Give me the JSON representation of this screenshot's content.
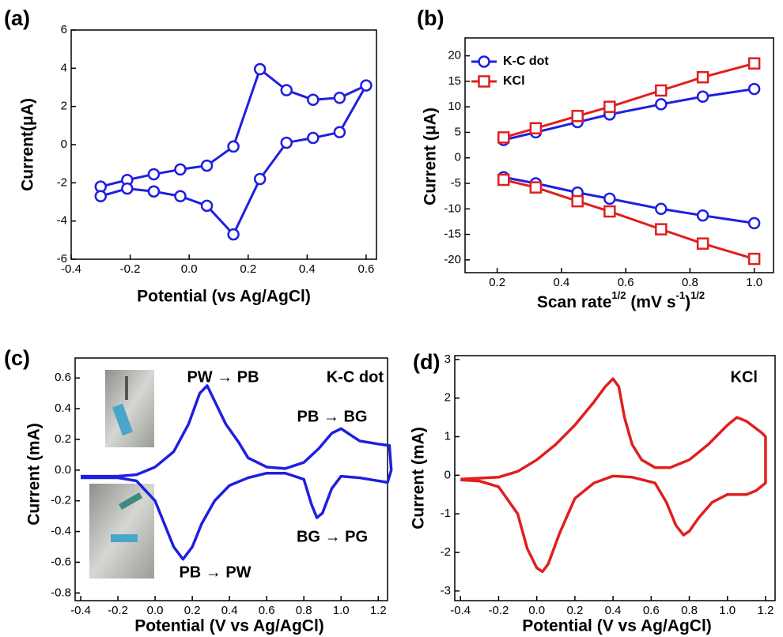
{
  "chart_data": [
    {
      "type": "line",
      "label": "(a)",
      "xlabel": "Potential (vs Ag/AgCl)",
      "ylabel": "Current(μA)",
      "color": "#1f1fe0",
      "marker": "circle",
      "x": [
        -0.3,
        -0.21,
        -0.12,
        -0.03,
        0.06,
        0.15,
        0.24,
        0.33,
        0.42,
        0.51,
        0.6,
        0.51,
        0.42,
        0.33,
        0.24,
        0.15,
        0.06,
        -0.03,
        -0.12,
        -0.21,
        -0.3
      ],
      "values": [
        -2.2,
        -1.85,
        -1.55,
        -1.3,
        -1.1,
        -0.1,
        3.95,
        2.85,
        2.35,
        2.45,
        3.1,
        0.65,
        0.35,
        0.1,
        -1.8,
        -4.7,
        -3.2,
        -2.7,
        -2.45,
        -2.3,
        -2.7
      ],
      "xlim": [
        -0.4,
        0.635
      ],
      "xticks": [
        -0.4,
        -0.2,
        {
          "value": 0,
          "label": "0.0"
        },
        0.2,
        0.4,
        0.6
      ],
      "ylim": [
        -6,
        6
      ],
      "yticks": [
        -6,
        -4,
        -2,
        0,
        2,
        4,
        6
      ]
    },
    {
      "type": "line",
      "label": "(b)",
      "xlabel": [
        "Scan rate",
        "1/2",
        " (mV s",
        "-1",
        ")",
        "1/2"
      ],
      "ylabel": "Current (μA)",
      "legend": "upper left",
      "x": [
        0.22,
        0.32,
        0.45,
        0.55,
        0.71,
        0.84,
        1.0
      ],
      "series": [
        {
          "name": "K-C dot",
          "color": "#1f1fe0",
          "marker": "circle",
          "values": [
            3.5,
            5.0,
            7.0,
            8.5,
            10.5,
            12.0,
            13.5
          ],
          "values_lower": [
            -3.8,
            -5.0,
            -6.8,
            -8.0,
            -10.0,
            -11.3,
            -12.8
          ]
        },
        {
          "name": "KCl",
          "color": "#e01f1f",
          "marker": "square",
          "values": [
            4.0,
            5.8,
            8.2,
            10.0,
            13.2,
            15.8,
            18.5
          ],
          "values_lower": [
            -4.3,
            -5.8,
            -8.5,
            -10.5,
            -14.0,
            -16.8,
            -19.8
          ]
        }
      ],
      "xlim": [
        0.1,
        1.06
      ],
      "xticks": [
        0.2,
        0.4,
        0.6,
        0.8,
        {
          "value": 1,
          "label": "1.0"
        }
      ],
      "ylim": [
        -22.5,
        23.5
      ],
      "yticks": [
        -20,
        -15,
        -10,
        -5,
        0,
        5,
        10,
        15,
        20
      ]
    },
    {
      "type": "line",
      "label": "(c)",
      "xlabel": "Potential (V vs Ag/AgCl)",
      "ylabel": "Current (mA)",
      "color": "#1f1fe0",
      "annotations": [
        "PW → PB",
        "K-C dot",
        "PB → BG",
        "BG → PG",
        "PB → PW"
      ],
      "x": [
        -0.4,
        -0.2,
        -0.1,
        0.0,
        0.1,
        0.18,
        0.24,
        0.28,
        0.32,
        0.38,
        0.45,
        0.5,
        0.6,
        0.7,
        0.8,
        0.88,
        0.95,
        1.0,
        1.05,
        1.1,
        1.2,
        1.26,
        1.27,
        1.25,
        1.2,
        1.1,
        1.0,
        0.95,
        0.9,
        0.87,
        0.84,
        0.8,
        0.7,
        0.6,
        0.5,
        0.4,
        0.32,
        0.25,
        0.2,
        0.15,
        0.1,
        0.05,
        0.0,
        -0.1,
        -0.2,
        -0.4
      ],
      "values": [
        -0.04,
        -0.04,
        -0.03,
        0.02,
        0.12,
        0.3,
        0.5,
        0.55,
        0.45,
        0.3,
        0.18,
        0.08,
        0.02,
        0.01,
        0.05,
        0.14,
        0.24,
        0.27,
        0.23,
        0.19,
        0.17,
        0.16,
        0.0,
        -0.08,
        -0.07,
        -0.05,
        -0.04,
        -0.12,
        -0.28,
        -0.31,
        -0.22,
        -0.06,
        -0.02,
        -0.02,
        -0.05,
        -0.1,
        -0.2,
        -0.35,
        -0.5,
        -0.58,
        -0.5,
        -0.35,
        -0.2,
        -0.07,
        -0.05,
        -0.05
      ],
      "xlim": [
        -0.43,
        1.25
      ],
      "xticks": [
        -0.4,
        -0.2,
        {
          "value": 0,
          "label": "0.0"
        },
        0.2,
        0.4,
        0.6,
        0.8,
        {
          "value": 1,
          "label": "1.0"
        },
        1.2
      ],
      "ylim": [
        -0.85,
        0.73
      ],
      "yticks": [
        -0.8,
        -0.6,
        -0.4,
        -0.2,
        {
          "value": 0,
          "label": "0.0"
        },
        0.2,
        0.4,
        0.6
      ]
    },
    {
      "type": "line",
      "label": "(d)",
      "xlabel": "Potential (V vs Ag/AgCl)",
      "ylabel": "Current (mA)",
      "color": "#e01f1f",
      "annotations": [
        "KCl"
      ],
      "x": [
        -0.4,
        -0.2,
        -0.1,
        0.0,
        0.1,
        0.2,
        0.3,
        0.36,
        0.4,
        0.43,
        0.46,
        0.5,
        0.55,
        0.62,
        0.7,
        0.8,
        0.9,
        1.0,
        1.05,
        1.1,
        1.18,
        1.2,
        1.2,
        1.15,
        1.1,
        1.0,
        0.92,
        0.85,
        0.8,
        0.77,
        0.73,
        0.68,
        0.62,
        0.5,
        0.4,
        0.3,
        0.2,
        0.12,
        0.06,
        0.03,
        0.0,
        -0.05,
        -0.1,
        -0.2,
        -0.3,
        -0.4
      ],
      "values": [
        -0.1,
        -0.05,
        0.1,
        0.4,
        0.8,
        1.3,
        1.9,
        2.3,
        2.5,
        2.3,
        1.5,
        0.8,
        0.4,
        0.2,
        0.2,
        0.4,
        0.8,
        1.3,
        1.5,
        1.4,
        1.1,
        1.0,
        -0.2,
        -0.4,
        -0.5,
        -0.5,
        -0.7,
        -1.1,
        -1.45,
        -1.55,
        -1.3,
        -0.7,
        -0.2,
        -0.05,
        -0.02,
        -0.2,
        -0.6,
        -1.5,
        -2.3,
        -2.5,
        -2.4,
        -1.9,
        -1.0,
        -0.3,
        -0.15,
        -0.12
      ],
      "xlim": [
        -0.43,
        1.25
      ],
      "xticks": [
        -0.4,
        -0.2,
        {
          "value": 0,
          "label": "0.0"
        },
        0.2,
        0.4,
        0.6,
        0.8,
        {
          "value": 1,
          "label": "1.0"
        },
        1.2
      ],
      "ylim": [
        -3.25,
        3.1
      ],
      "yticks": [
        -3,
        -2,
        -1,
        0,
        1,
        2,
        3
      ]
    }
  ]
}
